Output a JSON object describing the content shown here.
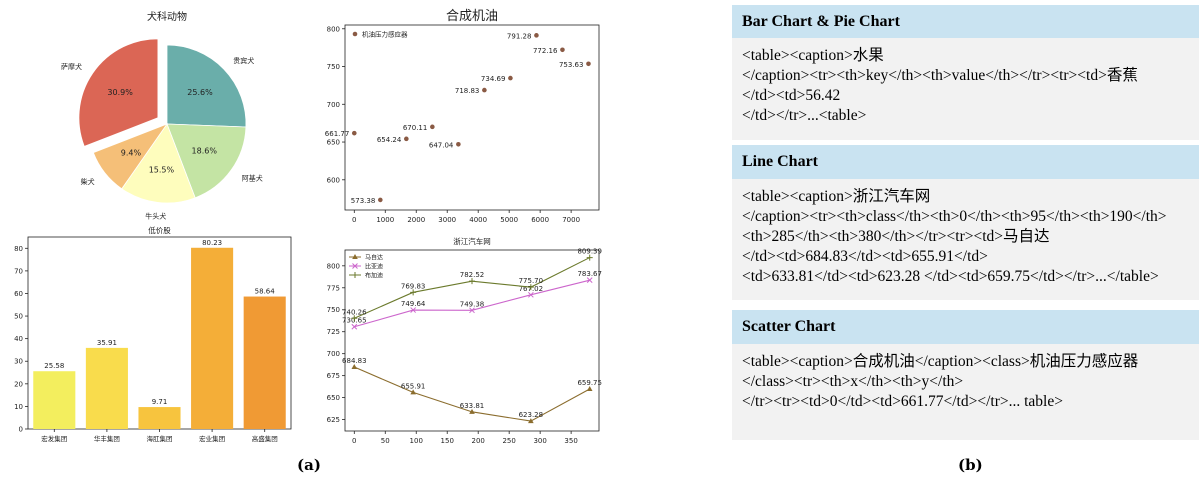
{
  "labels": {
    "a": "(a)",
    "b": "(b)"
  },
  "chart_data": [
    {
      "type": "pie",
      "title": "犬科动物",
      "slices": [
        {
          "label": "贵宾犬",
          "value": 25.6,
          "pct": "25.6%",
          "color": "#6aaeaa"
        },
        {
          "label": "阿基犬",
          "value": 18.6,
          "pct": "18.6%",
          "color": "#c4e4a4"
        },
        {
          "label": "牛头犬",
          "value": 15.5,
          "pct": "15.5%",
          "color": "#fefdbd"
        },
        {
          "label": "柴犬",
          "value": 9.4,
          "pct": "9.4%",
          "color": "#f5bf78"
        },
        {
          "label": "萨摩犬",
          "value": 30.9,
          "pct": "30.9%",
          "color": "#db6655",
          "explode": true
        }
      ]
    },
    {
      "type": "scatter",
      "title": "合成机油",
      "legend": "机油压力感应器",
      "legend_position": "top-left",
      "color": "#8a5a44",
      "x": [
        0,
        840,
        1680,
        2520,
        3360,
        4200,
        5040,
        5880,
        6720,
        7560
      ],
      "y": [
        661.77,
        573.38,
        654.24,
        670.11,
        647.04,
        718.83,
        734.69,
        791.28,
        772.16,
        753.63
      ],
      "point_labels": [
        "661.77",
        "573.38",
        "654.24",
        "670.11",
        "647.04",
        "718.83",
        "734.69",
        "791.28",
        "772.16",
        "753.63"
      ],
      "xlim": [
        -300,
        7900
      ],
      "ylim": [
        560,
        805
      ],
      "xticks": [
        0,
        1000,
        2000,
        3000,
        4000,
        5000,
        6000,
        7000
      ],
      "yticks": [
        600,
        650,
        700,
        750,
        800
      ]
    },
    {
      "type": "bar",
      "title": "低价股",
      "categories": [
        "宏发集团",
        "华丰集团",
        "海肛集团",
        "宏业集团",
        "高盛集团"
      ],
      "values": [
        25.58,
        35.91,
        9.71,
        80.23,
        58.64
      ],
      "value_labels": [
        "25.58",
        "35.91",
        "9.71",
        "80.23",
        "58.64"
      ],
      "colors": [
        "#f3ee5e",
        "#f9dc4c",
        "#f7c43e",
        "#f4ae38",
        "#f09a34"
      ],
      "ylim": [
        0,
        85
      ],
      "yticks": [
        0,
        10,
        20,
        30,
        40,
        50,
        60,
        70,
        80
      ]
    },
    {
      "type": "line",
      "title": "浙江汽车网",
      "x": [
        0,
        95,
        190,
        285,
        380
      ],
      "xlim": [
        -15,
        395
      ],
      "ylim": [
        612,
        818
      ],
      "xticks": [
        0,
        50,
        100,
        150,
        200,
        250,
        300,
        350
      ],
      "yticks": [
        625,
        650,
        675,
        700,
        725,
        750,
        775,
        800
      ],
      "legend_position": "top-left",
      "series": [
        {
          "name": "马自达",
          "color": "#8b6d2e",
          "marker": "triangle",
          "values": [
            684.83,
            655.91,
            633.81,
            623.28,
            659.75
          ],
          "labels": [
            "684.83",
            "655.91",
            "633.81",
            "623.28",
            "659.75"
          ]
        },
        {
          "name": "比亚迪",
          "color": "#cc66cc",
          "marker": "x",
          "values": [
            730.65,
            749.64,
            749.38,
            767.02,
            783.67
          ],
          "labels": [
            "730.65",
            "749.64",
            "749.38",
            "767.02",
            "783.67"
          ]
        },
        {
          "name": "布加迪",
          "color": "#6b7a2c",
          "marker": "plus",
          "values": [
            740.26,
            769.83,
            782.52,
            775.7,
            809.39
          ],
          "labels": [
            "740.26",
            "769.83",
            "782.52",
            "775.70",
            "809.39"
          ]
        }
      ]
    }
  ],
  "examples": [
    {
      "heading": "Bar Chart & Pie Chart",
      "lines": [
        "<table><caption>水果",
        "</caption><tr><th>key</th><th>value</th></tr><tr><td>香蕉",
        "</td><td>56.42",
        "</td></tr>...<table>"
      ]
    },
    {
      "heading": "Line Chart",
      "lines": [
        "<table><caption>浙江汽车网",
        "</caption><tr><th>class</th><th>0</th><th>95</th><th>190</th>",
        "<th>285</th><th>380</th></tr><tr><td>马自达",
        "</td><td>684.83</td><td>655.91</td>",
        "<td>633.81</td><td>623.28 </td><td>659.75</td></tr>...</table>"
      ]
    },
    {
      "heading": "Scatter Chart",
      "lines": [
        "<table><caption>合成机油</caption><class>机油压力感应器",
        "</class><tr><th>x</th><th>y</th>",
        "</tr><tr><td>0</td><td>661.77</td></tr>... table>"
      ]
    }
  ]
}
